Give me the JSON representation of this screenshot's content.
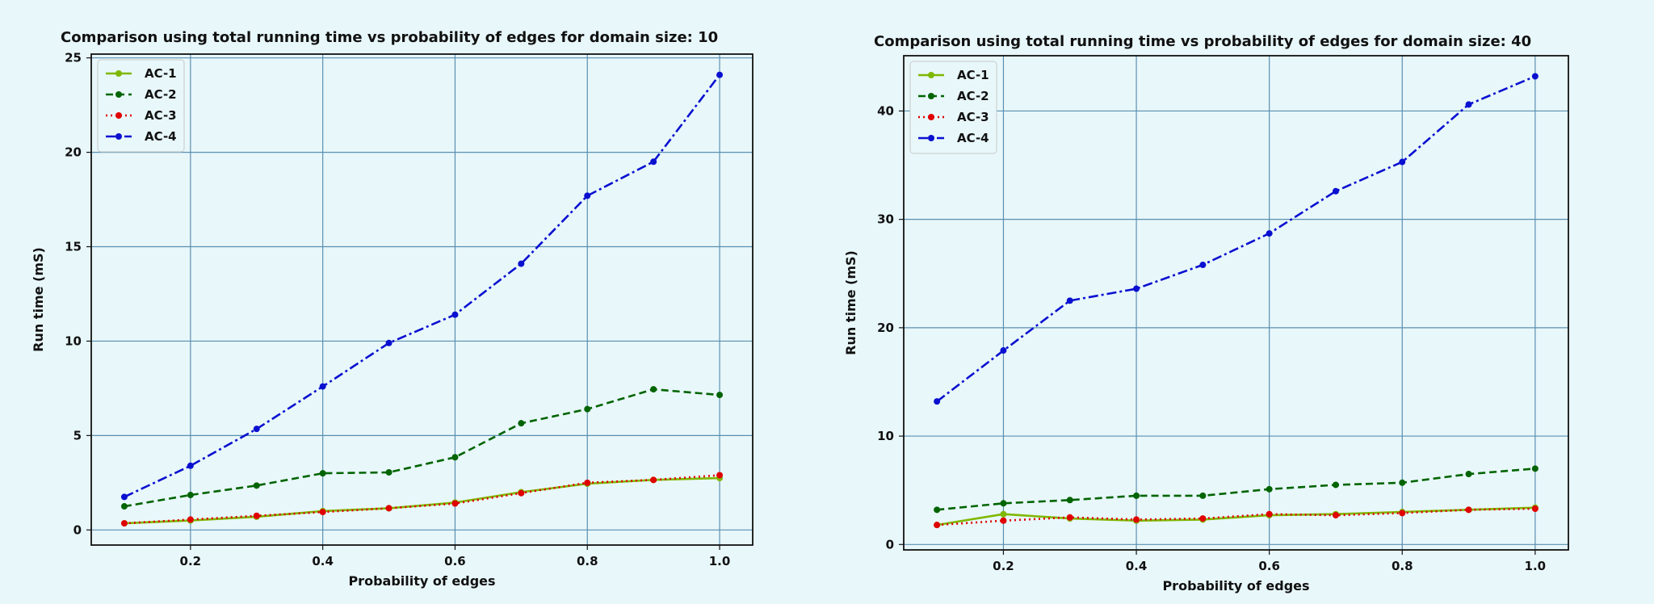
{
  "chart_data": [
    {
      "type": "line",
      "title": "Comparison using total running time vs probability of edges for domain size: 10",
      "xlabel": "Probability of edges",
      "ylabel": "Run time (mS)",
      "x": [
        0.1,
        0.2,
        0.3,
        0.4,
        0.5,
        0.6,
        0.7,
        0.8,
        0.9,
        1.0
      ],
      "xlim": [
        0.05,
        1.05
      ],
      "ylim": [
        -0.8,
        25.2
      ],
      "xticks": [
        "0.2",
        "0.4",
        "0.6",
        "0.8",
        "1.0"
      ],
      "yticks": [
        "0",
        "5",
        "10",
        "15",
        "20",
        "25"
      ],
      "grid": true,
      "legend_position": "top-left",
      "series": [
        {
          "name": "AC-1",
          "color": "#7fb800",
          "dash": "solid",
          "values": [
            0.35,
            0.5,
            0.7,
            1.0,
            1.15,
            1.45,
            2.0,
            2.45,
            2.65,
            2.75
          ]
        },
        {
          "name": "AC-2",
          "color": "#006400",
          "dash": "dashed",
          "values": [
            1.25,
            1.85,
            2.35,
            3.0,
            3.05,
            3.85,
            5.65,
            6.4,
            7.45,
            7.15
          ]
        },
        {
          "name": "AC-3",
          "color": "#e00000",
          "dash": "dotted",
          "values": [
            0.35,
            0.55,
            0.75,
            0.95,
            1.15,
            1.4,
            1.95,
            2.5,
            2.65,
            2.9
          ]
        },
        {
          "name": "AC-4",
          "color": "#0a10d0",
          "dash": "dashdot",
          "values": [
            1.75,
            3.4,
            5.35,
            7.6,
            9.9,
            11.4,
            14.1,
            17.7,
            19.5,
            24.1
          ]
        }
      ]
    },
    {
      "type": "line",
      "title": "Comparison using total running time vs probability of edges for domain size: 40",
      "xlabel": "Probability of edges",
      "ylabel": "Run time (mS)",
      "x": [
        0.1,
        0.2,
        0.3,
        0.4,
        0.5,
        0.6,
        0.7,
        0.8,
        0.9,
        1.0
      ],
      "xlim": [
        0.05,
        1.05
      ],
      "ylim": [
        -0.5,
        45.1
      ],
      "xticks": [
        "0.2",
        "0.4",
        "0.6",
        "0.8",
        "1.0"
      ],
      "yticks": [
        "0",
        "10",
        "20",
        "30",
        "40"
      ],
      "grid": true,
      "legend_position": "top-left",
      "series": [
        {
          "name": "AC-1",
          "color": "#7fb800",
          "dash": "solid",
          "values": [
            1.8,
            2.8,
            2.4,
            2.2,
            2.3,
            2.7,
            2.8,
            3.0,
            3.2,
            3.4
          ]
        },
        {
          "name": "AC-2",
          "color": "#006400",
          "dash": "dashed",
          "values": [
            3.2,
            3.8,
            4.1,
            4.5,
            4.5,
            5.1,
            5.5,
            5.7,
            6.5,
            7.0
          ]
        },
        {
          "name": "AC-3",
          "color": "#e00000",
          "dash": "dotted",
          "values": [
            1.8,
            2.2,
            2.5,
            2.3,
            2.4,
            2.8,
            2.7,
            2.9,
            3.2,
            3.3
          ]
        },
        {
          "name": "AC-4",
          "color": "#0a10d0",
          "dash": "dashdot",
          "values": [
            13.2,
            17.9,
            22.5,
            23.6,
            25.8,
            28.7,
            32.6,
            35.3,
            40.6,
            43.2
          ]
        }
      ]
    }
  ]
}
